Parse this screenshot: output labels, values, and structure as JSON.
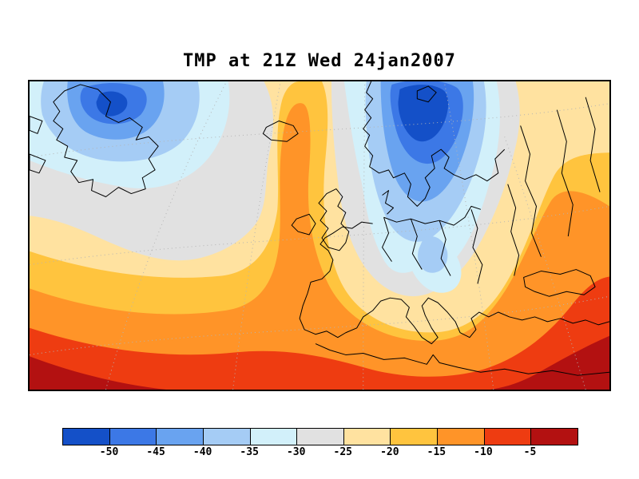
{
  "title": "TMP at 21Z Wed 24jan2007",
  "colorbar": {
    "labels": [
      "-50",
      "-45",
      "-40",
      "-35",
      "-30",
      "-25",
      "-20",
      "-15",
      "-10",
      "-5"
    ],
    "colors": [
      "#1450c8",
      "#3c78e6",
      "#69a3f0",
      "#a5ccf5",
      "#d2f0fa",
      "#e1e1e1",
      "#ffe2a0",
      "#ffc43e",
      "#ff9428",
      "#ee3c11",
      "#b31111"
    ]
  },
  "chart_data": {
    "type": "heatmap",
    "title": "TMP at 21Z Wed 24jan2007",
    "variable": "TMP",
    "time": "21Z Wed 24jan2007",
    "contour_levels": [
      -50,
      -45,
      -40,
      -35,
      -30,
      -25,
      -20,
      -15,
      -10,
      -5
    ],
    "palette": [
      "#1450c8",
      "#3c78e6",
      "#69a3f0",
      "#a5ccf5",
      "#d2f0fa",
      "#e1e1e1",
      "#ffe2a0",
      "#ffc43e",
      "#ff9428",
      "#ee3c11",
      "#b31111"
    ],
    "legend_position": "bottom",
    "grid": true
  }
}
